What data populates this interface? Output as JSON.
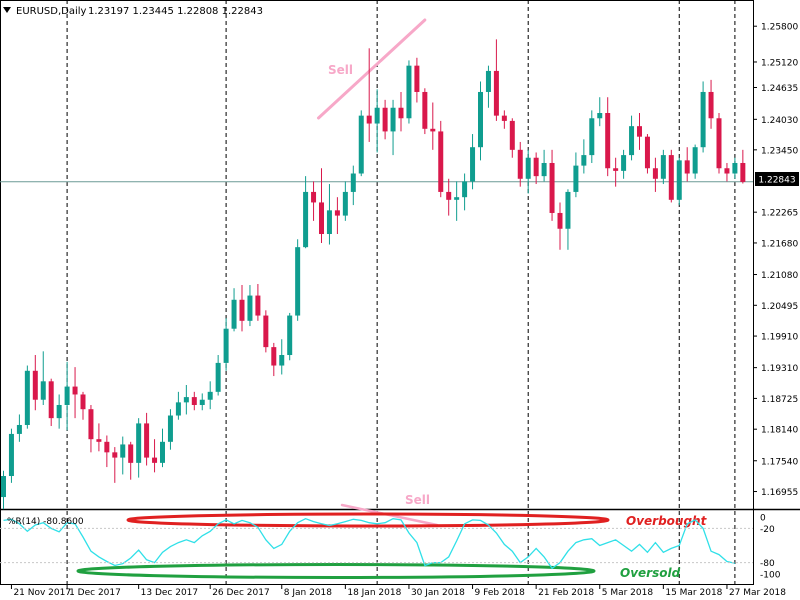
{
  "window": {
    "symbol_label": "EURUSD,Daily",
    "ohlc_label": "1.23197 1.23445 1.22808 1.22843",
    "wr_label": "%R(14) -80.8600",
    "current_price_tag": "1.22843"
  },
  "chart_data": [
    {
      "type": "candlestick",
      "title": "EURUSD,Daily",
      "ohlc_readout": [
        1.23197,
        1.23445,
        1.22808,
        1.22843
      ],
      "x_tick_labels": [
        "21 Nov 2017",
        "1 Dec 2017",
        "13 Dec 2017",
        "26 Dec 2017",
        "8 Jan 2018",
        "18 Jan 2018",
        "30 Jan 2018",
        "9 Feb 2018",
        "21 Feb 2018",
        "5 Mar 2018",
        "15 Mar 2018",
        "27 Mar 2018"
      ],
      "y_tick_labels": [
        "1.25800",
        "1.25120",
        "1.24635",
        "1.24030",
        "1.23450",
        "1.22843",
        "1.22265",
        "1.21680",
        "1.21080",
        "1.20495",
        "1.19910",
        "1.19310",
        "1.18725",
        "1.18140",
        "1.17540",
        "1.16955"
      ],
      "ylim": [
        1.1668,
        1.2607
      ],
      "current_price": 1.22843,
      "grid": "vertical-dashed",
      "colors": {
        "bull": "#0f9d8f",
        "bear": "#d9184b",
        "current_line": "#6c9a96"
      },
      "annotations": [
        {
          "text": "Sell",
          "color": "#f7a8c8"
        }
      ],
      "candles": [
        {
          "date": "2017-11-20",
          "o": 1.1685,
          "h": 1.1735,
          "l": 1.1662,
          "c": 1.1725
        },
        {
          "date": "2017-11-21",
          "o": 1.1725,
          "h": 1.1815,
          "l": 1.1712,
          "c": 1.1805
        },
        {
          "date": "2017-11-22",
          "o": 1.1805,
          "h": 1.1842,
          "l": 1.179,
          "c": 1.1822
        },
        {
          "date": "2017-11-23",
          "o": 1.1822,
          "h": 1.1935,
          "l": 1.1815,
          "c": 1.1925
        },
        {
          "date": "2017-11-24",
          "o": 1.1925,
          "h": 1.1955,
          "l": 1.185,
          "c": 1.187
        },
        {
          "date": "2017-11-27",
          "o": 1.187,
          "h": 1.1962,
          "l": 1.186,
          "c": 1.1905
        },
        {
          "date": "2017-11-28",
          "o": 1.1905,
          "h": 1.191,
          "l": 1.182,
          "c": 1.1835
        },
        {
          "date": "2017-11-29",
          "o": 1.1835,
          "h": 1.188,
          "l": 1.1815,
          "c": 1.186
        },
        {
          "date": "2017-11-30",
          "o": 1.186,
          "h": 1.1942,
          "l": 1.1812,
          "c": 1.1895
        },
        {
          "date": "2017-12-01",
          "o": 1.1895,
          "h": 1.1932,
          "l": 1.1835,
          "c": 1.188
        },
        {
          "date": "2017-12-04",
          "o": 1.188,
          "h": 1.1885,
          "l": 1.1832,
          "c": 1.1852
        },
        {
          "date": "2017-12-05",
          "o": 1.1852,
          "h": 1.186,
          "l": 1.177,
          "c": 1.1795
        },
        {
          "date": "2017-12-06",
          "o": 1.1795,
          "h": 1.1825,
          "l": 1.1772,
          "c": 1.179
        },
        {
          "date": "2017-12-07",
          "o": 1.179,
          "h": 1.1802,
          "l": 1.1742,
          "c": 1.177
        },
        {
          "date": "2017-12-08",
          "o": 1.177,
          "h": 1.178,
          "l": 1.1712,
          "c": 1.176
        },
        {
          "date": "2017-12-11",
          "o": 1.176,
          "h": 1.18,
          "l": 1.1728,
          "c": 1.1785
        },
        {
          "date": "2017-12-12",
          "o": 1.1785,
          "h": 1.179,
          "l": 1.1718,
          "c": 1.175
        },
        {
          "date": "2017-12-13",
          "o": 1.175,
          "h": 1.1835,
          "l": 1.1722,
          "c": 1.1825
        },
        {
          "date": "2017-12-14",
          "o": 1.1825,
          "h": 1.1845,
          "l": 1.1745,
          "c": 1.176
        },
        {
          "date": "2017-12-15",
          "o": 1.176,
          "h": 1.1795,
          "l": 1.1732,
          "c": 1.175
        },
        {
          "date": "2017-12-18",
          "o": 1.175,
          "h": 1.1815,
          "l": 1.1742,
          "c": 1.179
        },
        {
          "date": "2017-12-19",
          "o": 1.179,
          "h": 1.1852,
          "l": 1.1775,
          "c": 1.184
        },
        {
          "date": "2017-12-20",
          "o": 1.184,
          "h": 1.1885,
          "l": 1.1832,
          "c": 1.1865
        },
        {
          "date": "2017-12-21",
          "o": 1.1865,
          "h": 1.1898,
          "l": 1.1842,
          "c": 1.1875
        },
        {
          "date": "2017-12-22",
          "o": 1.1875,
          "h": 1.1885,
          "l": 1.185,
          "c": 1.186
        },
        {
          "date": "2017-12-26",
          "o": 1.186,
          "h": 1.1882,
          "l": 1.185,
          "c": 1.187
        },
        {
          "date": "2017-12-27",
          "o": 1.187,
          "h": 1.1905,
          "l": 1.1852,
          "c": 1.1885
        },
        {
          "date": "2017-12-28",
          "o": 1.1885,
          "h": 1.1955,
          "l": 1.1878,
          "c": 1.194
        },
        {
          "date": "2017-12-29",
          "o": 1.194,
          "h": 1.2025,
          "l": 1.1925,
          "c": 1.2005
        },
        {
          "date": "2018-01-02",
          "o": 1.2005,
          "h": 1.2082,
          "l": 1.2,
          "c": 1.206
        },
        {
          "date": "2018-01-03",
          "o": 1.206,
          "h": 1.2088,
          "l": 1.2,
          "c": 1.202
        },
        {
          "date": "2018-01-04",
          "o": 1.202,
          "h": 1.2088,
          "l": 1.201,
          "c": 1.2068
        },
        {
          "date": "2018-01-05",
          "o": 1.2068,
          "h": 1.209,
          "l": 1.202,
          "c": 1.203
        },
        {
          "date": "2018-01-08",
          "o": 1.203,
          "h": 1.204,
          "l": 1.196,
          "c": 1.197
        },
        {
          "date": "2018-01-09",
          "o": 1.197,
          "h": 1.1978,
          "l": 1.1915,
          "c": 1.1935
        },
        {
          "date": "2018-01-10",
          "o": 1.1935,
          "h": 1.1985,
          "l": 1.1918,
          "c": 1.1955
        },
        {
          "date": "2018-01-11",
          "o": 1.1955,
          "h": 1.2035,
          "l": 1.1945,
          "c": 1.203
        },
        {
          "date": "2018-01-12",
          "o": 1.203,
          "h": 1.2175,
          "l": 1.202,
          "c": 1.216
        },
        {
          "date": "2018-01-15",
          "o": 1.216,
          "h": 1.2295,
          "l": 1.2158,
          "c": 1.2265
        },
        {
          "date": "2018-01-16",
          "o": 1.2265,
          "h": 1.2285,
          "l": 1.221,
          "c": 1.2245
        },
        {
          "date": "2018-01-17",
          "o": 1.2245,
          "h": 1.231,
          "l": 1.2168,
          "c": 1.2185
        },
        {
          "date": "2018-01-18",
          "o": 1.2185,
          "h": 1.228,
          "l": 1.2165,
          "c": 1.223
        },
        {
          "date": "2018-01-19",
          "o": 1.223,
          "h": 1.2255,
          "l": 1.2185,
          "c": 1.222
        },
        {
          "date": "2018-01-22",
          "o": 1.222,
          "h": 1.2285,
          "l": 1.221,
          "c": 1.2265
        },
        {
          "date": "2018-01-23",
          "o": 1.2265,
          "h": 1.2315,
          "l": 1.224,
          "c": 1.23
        },
        {
          "date": "2018-01-24",
          "o": 1.23,
          "h": 1.242,
          "l": 1.2295,
          "c": 1.241
        },
        {
          "date": "2018-01-25",
          "o": 1.241,
          "h": 1.2538,
          "l": 1.236,
          "c": 1.2395
        },
        {
          "date": "2018-01-26",
          "o": 1.2395,
          "h": 1.246,
          "l": 1.234,
          "c": 1.2425
        },
        {
          "date": "2018-01-29",
          "o": 1.2425,
          "h": 1.244,
          "l": 1.2365,
          "c": 1.238
        },
        {
          "date": "2018-01-30",
          "o": 1.238,
          "h": 1.244,
          "l": 1.2335,
          "c": 1.2425
        },
        {
          "date": "2018-01-31",
          "o": 1.2425,
          "h": 1.2455,
          "l": 1.238,
          "c": 1.2405
        },
        {
          "date": "2018-02-01",
          "o": 1.2405,
          "h": 1.2515,
          "l": 1.2395,
          "c": 1.2505
        },
        {
          "date": "2018-02-02",
          "o": 1.2505,
          "h": 1.252,
          "l": 1.2435,
          "c": 1.2455
        },
        {
          "date": "2018-02-05",
          "o": 1.2455,
          "h": 1.2462,
          "l": 1.2375,
          "c": 1.2385
        },
        {
          "date": "2018-02-06",
          "o": 1.2385,
          "h": 1.2435,
          "l": 1.2345,
          "c": 1.238
        },
        {
          "date": "2018-02-07",
          "o": 1.238,
          "h": 1.24,
          "l": 1.2255,
          "c": 1.2265
        },
        {
          "date": "2018-02-08",
          "o": 1.2265,
          "h": 1.229,
          "l": 1.222,
          "c": 1.225
        },
        {
          "date": "2018-02-09",
          "o": 1.225,
          "h": 1.2285,
          "l": 1.221,
          "c": 1.2255
        },
        {
          "date": "2018-02-12",
          "o": 1.2255,
          "h": 1.23,
          "l": 1.223,
          "c": 1.2285
        },
        {
          "date": "2018-02-13",
          "o": 1.2285,
          "h": 1.2375,
          "l": 1.227,
          "c": 1.235
        },
        {
          "date": "2018-02-14",
          "o": 1.235,
          "h": 1.2475,
          "l": 1.2325,
          "c": 1.2455
        },
        {
          "date": "2018-02-15",
          "o": 1.2455,
          "h": 1.2505,
          "l": 1.2425,
          "c": 1.2495
        },
        {
          "date": "2018-02-16",
          "o": 1.2495,
          "h": 1.2555,
          "l": 1.24,
          "c": 1.241
        },
        {
          "date": "2018-02-19",
          "o": 1.241,
          "h": 1.242,
          "l": 1.2385,
          "c": 1.24
        },
        {
          "date": "2018-02-20",
          "o": 1.24,
          "h": 1.2405,
          "l": 1.233,
          "c": 1.2345
        },
        {
          "date": "2018-02-21",
          "o": 1.2345,
          "h": 1.236,
          "l": 1.2275,
          "c": 1.229
        },
        {
          "date": "2018-02-22",
          "o": 1.229,
          "h": 1.2345,
          "l": 1.2262,
          "c": 1.233
        },
        {
          "date": "2018-02-23",
          "o": 1.233,
          "h": 1.234,
          "l": 1.228,
          "c": 1.2295
        },
        {
          "date": "2018-02-26",
          "o": 1.2295,
          "h": 1.2345,
          "l": 1.2285,
          "c": 1.232
        },
        {
          "date": "2018-02-27",
          "o": 1.232,
          "h": 1.2345,
          "l": 1.221,
          "c": 1.2225
        },
        {
          "date": "2018-02-28",
          "o": 1.2225,
          "h": 1.2245,
          "l": 1.2155,
          "c": 1.2195
        },
        {
          "date": "2018-03-01",
          "o": 1.2195,
          "h": 1.227,
          "l": 1.2155,
          "c": 1.2265
        },
        {
          "date": "2018-03-02",
          "o": 1.2265,
          "h": 1.234,
          "l": 1.2255,
          "c": 1.2315
        },
        {
          "date": "2018-03-05",
          "o": 1.2315,
          "h": 1.2365,
          "l": 1.23,
          "c": 1.2335
        },
        {
          "date": "2018-03-06",
          "o": 1.2335,
          "h": 1.242,
          "l": 1.232,
          "c": 1.2405
        },
        {
          "date": "2018-03-07",
          "o": 1.2405,
          "h": 1.2445,
          "l": 1.239,
          "c": 1.2415
        },
        {
          "date": "2018-03-08",
          "o": 1.2415,
          "h": 1.2445,
          "l": 1.2295,
          "c": 1.231
        },
        {
          "date": "2018-03-09",
          "o": 1.231,
          "h": 1.233,
          "l": 1.2275,
          "c": 1.2305
        },
        {
          "date": "2018-03-12",
          "o": 1.2305,
          "h": 1.2345,
          "l": 1.229,
          "c": 1.2335
        },
        {
          "date": "2018-03-13",
          "o": 1.2335,
          "h": 1.241,
          "l": 1.2325,
          "c": 1.239
        },
        {
          "date": "2018-03-14",
          "o": 1.239,
          "h": 1.2415,
          "l": 1.2345,
          "c": 1.237
        },
        {
          "date": "2018-03-15",
          "o": 1.237,
          "h": 1.2375,
          "l": 1.23,
          "c": 1.231
        },
        {
          "date": "2018-03-16",
          "o": 1.231,
          "h": 1.233,
          "l": 1.2265,
          "c": 1.229
        },
        {
          "date": "2018-03-19",
          "o": 1.229,
          "h": 1.2345,
          "l": 1.228,
          "c": 1.2335
        },
        {
          "date": "2018-03-20",
          "o": 1.2335,
          "h": 1.2345,
          "l": 1.2245,
          "c": 1.225
        },
        {
          "date": "2018-03-21",
          "o": 1.225,
          "h": 1.233,
          "l": 1.224,
          "c": 1.2325
        },
        {
          "date": "2018-03-22",
          "o": 1.2325,
          "h": 1.235,
          "l": 1.2285,
          "c": 1.23
        },
        {
          "date": "2018-03-23",
          "o": 1.23,
          "h": 1.2355,
          "l": 1.229,
          "c": 1.235
        },
        {
          "date": "2018-03-26",
          "o": 1.235,
          "h": 1.2475,
          "l": 1.234,
          "c": 1.2455
        },
        {
          "date": "2018-03-27",
          "o": 1.2455,
          "h": 1.2478,
          "l": 1.2385,
          "c": 1.2405
        },
        {
          "date": "2018-03-28",
          "o": 1.2405,
          "h": 1.2415,
          "l": 1.23,
          "c": 1.231
        },
        {
          "date": "2018-03-29",
          "o": 1.231,
          "h": 1.232,
          "l": 1.2285,
          "c": 1.23
        },
        {
          "date": "2018-03-30",
          "o": 1.23,
          "h": 1.233,
          "l": 1.229,
          "c": 1.232
        },
        {
          "date": "2018-04-02",
          "o": 1.232,
          "h": 1.2345,
          "l": 1.2281,
          "c": 1.2284
        }
      ]
    },
    {
      "type": "line",
      "title": "%R(14) -80.8600",
      "series": [
        {
          "name": "%R(14)",
          "color": "#30e0e8"
        }
      ],
      "ylim": [
        -100,
        0
      ],
      "y_tick_labels": [
        "0",
        "-20",
        "-80",
        "-100"
      ],
      "annotations": [
        {
          "text": "Overbought",
          "color": "#e02020"
        },
        {
          "text": "Oversold",
          "color": "#20a040"
        },
        {
          "text": "Sell",
          "color": "#f7a8c8"
        }
      ],
      "values": [
        -6,
        -4,
        -12,
        -25,
        -14,
        -10,
        -20,
        -26,
        -10,
        -12,
        -35,
        -60,
        -70,
        -78,
        -85,
        -82,
        -72,
        -58,
        -75,
        -80,
        -62,
        -52,
        -45,
        -40,
        -45,
        -33,
        -25,
        -12,
        -5,
        -12,
        -6,
        -10,
        -18,
        -40,
        -55,
        -48,
        -25,
        -10,
        -3,
        -8,
        -12,
        -15,
        -12,
        -8,
        -4,
        -6,
        -10,
        -12,
        -10,
        -3,
        -5,
        -28,
        -45,
        -85,
        -80,
        -80,
        -70,
        -42,
        -12,
        -5,
        -6,
        -14,
        -28,
        -48,
        -60,
        -80,
        -70,
        -55,
        -70,
        -90,
        -80,
        -60,
        -45,
        -40,
        -38,
        -50,
        -45,
        -40,
        -50,
        -60,
        -48,
        -62,
        -45,
        -62,
        -55,
        -50,
        -12,
        -5,
        -20,
        -60,
        -66,
        -78,
        -81
      ]
    }
  ]
}
